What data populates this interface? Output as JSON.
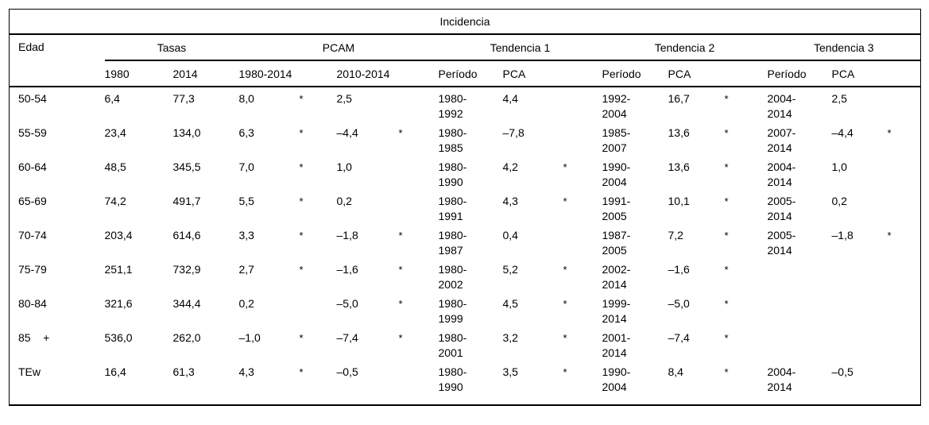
{
  "table": {
    "title": "Incidencia",
    "header": {
      "edad": "Edad",
      "groups": [
        {
          "label": "Tasas"
        },
        {
          "label": "PCAM"
        },
        {
          "label": "Tendencia 1"
        },
        {
          "label": "Tendencia 2"
        },
        {
          "label": "Tendencia 3"
        }
      ],
      "sub": [
        "1980",
        "2014",
        "1980-2014",
        "2010-2014",
        "Período",
        "PCA",
        "Período",
        "PCA",
        "Período",
        "PCA"
      ]
    },
    "columns": [
      {
        "id": "edad",
        "kind": "edad"
      },
      {
        "id": "tasa-1980",
        "kind": "num"
      },
      {
        "id": "tasa-2014",
        "kind": "num"
      },
      {
        "id": "pcam-1980-2014",
        "kind": "num"
      },
      {
        "id": "pcam-1980-2014-sig",
        "kind": "sig"
      },
      {
        "id": "pcam-2010-2014",
        "kind": "num"
      },
      {
        "id": "pcam-2010-2014-sig",
        "kind": "sig"
      },
      {
        "id": "tendencia1-periodo",
        "kind": "periodo"
      },
      {
        "id": "tendencia1-pca",
        "kind": "num"
      },
      {
        "id": "tendencia1-sig",
        "kind": "sig"
      },
      {
        "id": "tendencia2-periodo",
        "kind": "periodo"
      },
      {
        "id": "tendencia2-pca",
        "kind": "num"
      },
      {
        "id": "tendencia2-sig",
        "kind": "sig"
      },
      {
        "id": "tendencia3-periodo",
        "kind": "periodo"
      },
      {
        "id": "tendencia3-pca",
        "kind": "num"
      },
      {
        "id": "tendencia3-sig",
        "kind": "sig"
      }
    ],
    "rows": [
      [
        "50-54",
        "6,4",
        "77,3",
        "8,0",
        "*",
        "2,5",
        "",
        "1980-\n1992",
        "4,4",
        "",
        "1992-\n2004",
        "16,7",
        "*",
        "2004-\n2014",
        "2,5",
        ""
      ],
      [
        "55-59",
        "23,4",
        "134,0",
        "6,3",
        "*",
        "–4,4",
        "*",
        "1980-\n1985",
        "–7,8",
        "",
        "1985-\n2007",
        "13,6",
        "*",
        "2007-\n2014",
        "–4,4",
        "*"
      ],
      [
        "60-64",
        "48,5",
        "345,5",
        "7,0",
        "*",
        "1,0",
        "",
        "1980-\n1990",
        "4,2",
        "*",
        "1990-\n2004",
        "13,6",
        "*",
        "2004-\n2014",
        "1,0",
        ""
      ],
      [
        "65-69",
        "74,2",
        "491,7",
        "5,5",
        "*",
        "0,2",
        "",
        "1980-\n1991",
        "4,3",
        "*",
        "1991-\n2005",
        "10,1",
        "*",
        "2005-\n2014",
        "0,2",
        ""
      ],
      [
        "70-74",
        "203,4",
        "614,6",
        "3,3",
        "*",
        "–1,8",
        "*",
        "1980-\n1987",
        "0,4",
        "",
        "1987-\n2005",
        "7,2",
        "*",
        "2005-\n2014",
        "–1,8",
        "*"
      ],
      [
        "75-79",
        "251,1",
        "732,9",
        "2,7",
        "*",
        "–1,6",
        "*",
        "1980-\n2002",
        "5,2",
        "*",
        "2002-\n2014",
        "–1,6",
        "*",
        "",
        "",
        ""
      ],
      [
        "80-84",
        "321,6",
        "344,4",
        "0,2",
        "",
        "–5,0",
        "*",
        "1980-\n1999",
        "4,5",
        "*",
        "1999-\n2014",
        "–5,0",
        "*",
        "",
        "",
        ""
      ],
      [
        "85    +",
        "536,0",
        "262,0",
        "–1,0",
        "*",
        "–7,4",
        "*",
        "1980-\n2001",
        "3,2",
        "*",
        "2001-\n2014",
        "–7,4",
        "*",
        "",
        "",
        ""
      ],
      [
        "TEw",
        "16,4",
        "61,3",
        "4,3",
        "*",
        "–0,5",
        "",
        "1980-\n1990",
        "3,5",
        "*",
        "1990-\n2004",
        "8,4",
        "*",
        "2004-\n2014",
        "–0,5",
        ""
      ]
    ]
  }
}
